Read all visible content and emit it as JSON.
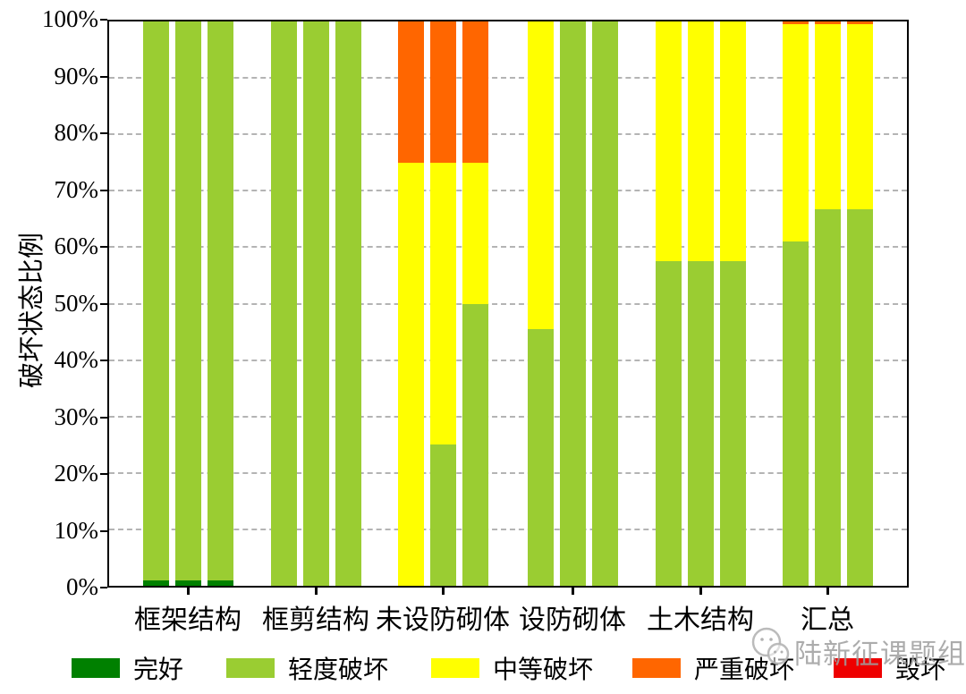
{
  "chart_data": {
    "type": "bar",
    "stacked": true,
    "bars_per_category": 3,
    "ylabel": "破坏状态比例",
    "ylim": [
      0,
      100
    ],
    "grid": "dashed-horizontal",
    "legend_position": "bottom",
    "yticks": [
      "0%",
      "10%",
      "20%",
      "30%",
      "40%",
      "50%",
      "60%",
      "70%",
      "80%",
      "90%",
      "100%"
    ],
    "categories": [
      "框架结构",
      "框剪结构",
      "未设防砌体",
      "设防砌体",
      "土木结构",
      "汇总"
    ],
    "series": [
      {
        "name": "完好",
        "color": "#008000",
        "values": [
          [
            1,
            1,
            1
          ],
          [
            0,
            0,
            0
          ],
          [
            0,
            0,
            0
          ],
          [
            0,
            0,
            0
          ],
          [
            0,
            0,
            0
          ],
          [
            0,
            0,
            0
          ]
        ]
      },
      {
        "name": "轻度破坏",
        "color": "#9ACD32",
        "values": [
          [
            99,
            99,
            99
          ],
          [
            100,
            100,
            100
          ],
          [
            0,
            25,
            50
          ],
          [
            45.5,
            100,
            100
          ],
          [
            57.5,
            57.5,
            57.5
          ],
          [
            61,
            66.7,
            66.7
          ]
        ]
      },
      {
        "name": "中等破坏",
        "color": "#FFFF00",
        "values": [
          [
            0,
            0,
            0
          ],
          [
            0,
            0,
            0
          ],
          [
            75,
            50,
            25
          ],
          [
            54.5,
            0,
            0
          ],
          [
            42.5,
            42.5,
            42.5
          ],
          [
            38.5,
            32.8,
            32.8
          ]
        ]
      },
      {
        "name": "严重破坏",
        "color": "#FF6600",
        "values": [
          [
            0,
            0,
            0
          ],
          [
            0,
            0,
            0
          ],
          [
            25,
            25,
            25
          ],
          [
            0,
            0,
            0
          ],
          [
            0,
            0,
            0
          ],
          [
            0.5,
            0.5,
            0.5
          ]
        ]
      },
      {
        "name": "毁坏",
        "color": "#EE0000",
        "values": [
          [
            0,
            0,
            0
          ],
          [
            0,
            0,
            0
          ],
          [
            0,
            0,
            0
          ],
          [
            0,
            0,
            0
          ],
          [
            0,
            0,
            0
          ],
          [
            0,
            0,
            0
          ]
        ]
      }
    ]
  },
  "watermark": {
    "text": "陆新征课题组",
    "icon": "wechat-icon"
  }
}
